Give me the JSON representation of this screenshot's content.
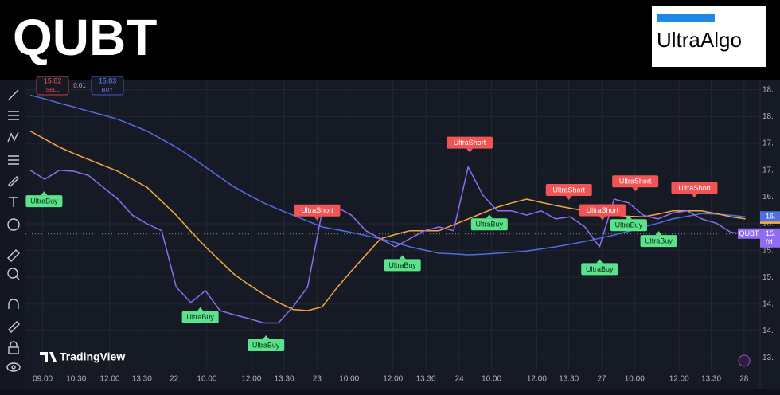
{
  "header": {
    "title": "QUBT",
    "logo": "UltraAlgo"
  },
  "order_panel": {
    "sell_price": 15.82,
    "sell": "SELL",
    "spread": 0.01,
    "buy_price": 15.83,
    "buy": "BUY"
  },
  "watermark": "TradingView",
  "chart_data": {
    "type": "line",
    "x": [
      0,
      2,
      4,
      6,
      8,
      10,
      12,
      14,
      16,
      18,
      20,
      22,
      24,
      26,
      28,
      30,
      32,
      34,
      36,
      38,
      40,
      42,
      44,
      46,
      48,
      50,
      52,
      54,
      56,
      58,
      60,
      62,
      64,
      66,
      68,
      70,
      72,
      74,
      76,
      78,
      80,
      82,
      84,
      86,
      88,
      90,
      92,
      94,
      96,
      98
    ],
    "series": [
      {
        "name": "QUBT",
        "color": "#8f6cf0",
        "last_label": "15.",
        "countdown": "01:",
        "values": [
          17.0,
          16.83,
          17.0,
          16.98,
          16.9,
          16.68,
          16.46,
          16.16,
          16.0,
          15.87,
          14.82,
          14.53,
          14.75,
          14.38,
          14.3,
          14.23,
          14.15,
          14.15,
          14.45,
          14.82,
          16.24,
          16.31,
          16.16,
          15.87,
          15.72,
          15.57,
          15.72,
          15.87,
          15.94,
          15.87,
          17.06,
          16.54,
          16.24,
          16.24,
          16.16,
          16.24,
          16.09,
          16.13,
          15.94,
          15.57,
          16.46,
          16.39,
          16.16,
          16.09,
          16.2,
          16.24,
          16.09,
          16.01,
          15.84,
          15.81
        ]
      },
      {
        "color": "#f5a742",
        "last_label": "16.",
        "values": [
          17.73,
          17.58,
          17.43,
          17.31,
          17.2,
          17.09,
          16.98,
          16.83,
          16.68,
          16.42,
          16.16,
          15.86,
          15.57,
          15.31,
          15.05,
          14.86,
          14.68,
          14.53,
          14.4,
          14.38,
          14.45,
          14.8,
          15.12,
          15.42,
          15.72,
          15.8,
          15.87,
          15.87,
          15.87,
          15.98,
          16.09,
          16.2,
          16.31,
          16.39,
          16.46,
          16.4,
          16.34,
          16.29,
          16.24,
          16.2,
          16.16,
          16.14,
          16.13,
          16.18,
          16.24,
          16.24,
          16.24,
          16.19,
          16.13,
          16.09
        ]
      },
      {
        "color": "#4f6fe0",
        "last_label": "16.",
        "values": [
          18.4,
          18.33,
          18.25,
          18.18,
          18.1,
          18.03,
          17.95,
          17.84,
          17.73,
          17.58,
          17.43,
          17.25,
          17.06,
          16.87,
          16.68,
          16.53,
          16.39,
          16.27,
          16.16,
          16.05,
          15.94,
          15.89,
          15.84,
          15.78,
          15.72,
          15.65,
          15.57,
          15.51,
          15.45,
          15.44,
          15.42,
          15.43,
          15.45,
          15.47,
          15.49,
          15.53,
          15.57,
          15.62,
          15.67,
          15.73,
          15.79,
          15.86,
          15.94,
          16.01,
          16.09,
          16.14,
          16.19,
          16.18,
          16.16,
          16.13
        ]
      }
    ],
    "signals": [
      {
        "label": "UltraBuy",
        "x": 1.9
      },
      {
        "label": "UltraBuy",
        "x": 23.3
      },
      {
        "label": "UltraBuy",
        "x": 32.3
      },
      {
        "label": "UltraShort",
        "x": 39.3
      },
      {
        "label": "UltraBuy",
        "x": 51.0
      },
      {
        "label": "UltraShort",
        "x": 60.2
      },
      {
        "label": "UltraBuy",
        "x": 62.9
      },
      {
        "label": "UltraShort",
        "x": 73.8
      },
      {
        "label": "UltraBuy",
        "x": 78.0
      },
      {
        "label": "UltraShort",
        "x": 78.4
      },
      {
        "label": "UltraBuy",
        "x": 82.0
      },
      {
        "label": "UltraShort",
        "x": 82.9
      },
      {
        "label": "UltraBuy",
        "x": 86.1
      },
      {
        "label": "UltraShort",
        "x": 91.0
      }
    ],
    "xlim": [
      0,
      100
    ],
    "ylim": [
      13.28,
      18.69
    ],
    "xticks": [
      {
        "value": 1.7,
        "label": "09:00"
      },
      {
        "value": 6.3,
        "label": "10:30"
      },
      {
        "value": 10.9,
        "label": "12:00"
      },
      {
        "value": 15.3,
        "label": "13:30"
      },
      {
        "value": 19.7,
        "label": "22"
      },
      {
        "value": 24.2,
        "label": "10:00"
      },
      {
        "value": 30.3,
        "label": "12:00"
      },
      {
        "value": 34.8,
        "label": "13:30"
      },
      {
        "value": 39.3,
        "label": "23"
      },
      {
        "value": 43.7,
        "label": "10:00"
      },
      {
        "value": 49.7,
        "label": "12:00"
      },
      {
        "value": 54.2,
        "label": "13:30"
      },
      {
        "value": 58.8,
        "label": "24"
      },
      {
        "value": 63.2,
        "label": "10:00"
      },
      {
        "value": 69.4,
        "label": "12:00"
      },
      {
        "value": 73.8,
        "label": "13:30"
      },
      {
        "value": 78.3,
        "label": "27"
      },
      {
        "value": 82.8,
        "label": "10:00"
      },
      {
        "value": 88.9,
        "label": "12:00"
      },
      {
        "value": 93.3,
        "label": "13:30"
      },
      {
        "value": 97.8,
        "label": "28"
      }
    ],
    "yticks": [
      {
        "value": 18.5,
        "label": "18."
      },
      {
        "value": 18.0,
        "label": "18."
      },
      {
        "value": 17.5,
        "label": "17."
      },
      {
        "value": 17.0,
        "label": "17."
      },
      {
        "value": 16.5,
        "label": "16."
      },
      {
        "value": 16.0,
        "label": "16."
      },
      {
        "value": 15.5,
        "label": "15."
      },
      {
        "value": 15.0,
        "label": "15."
      },
      {
        "value": 14.5,
        "label": "14."
      },
      {
        "value": 14.0,
        "label": "14."
      },
      {
        "value": 13.5,
        "label": "13."
      }
    ],
    "grid": true
  }
}
